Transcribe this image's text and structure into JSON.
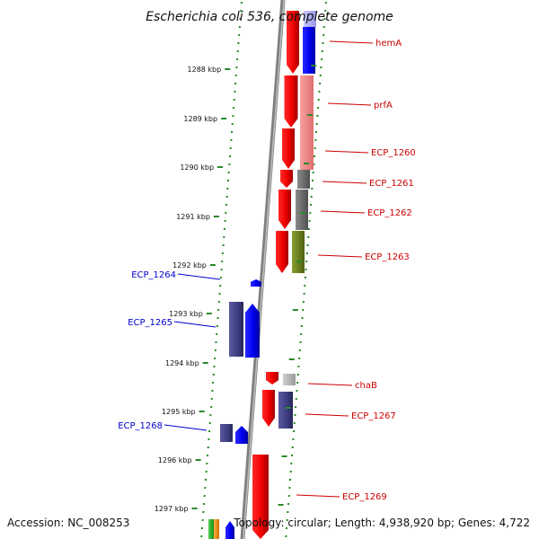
{
  "title": "Escherichia coli 536, complete genome",
  "footer": {
    "accession": "Accession: NC_008253",
    "summary": "Topology: circular; Length: 4,938,920 bp; Genes: 4,722"
  },
  "ruler": [
    {
      "label": "1288 kbp"
    },
    {
      "label": "1289 kbp"
    },
    {
      "label": "1290 kbp"
    },
    {
      "label": "1291 kbp"
    },
    {
      "label": "1292 kbp"
    },
    {
      "label": "1293 kbp"
    },
    {
      "label": "1294 kbp"
    },
    {
      "label": "1295 kbp"
    },
    {
      "label": "1296 kbp"
    },
    {
      "label": "1297 kbp"
    }
  ],
  "genes_right": [
    {
      "label": "hemA",
      "color": "#cc0000"
    },
    {
      "label": "prfA",
      "color": "#cc0000"
    },
    {
      "label": "ECP_1260",
      "color": "#cc0000"
    },
    {
      "label": "ECP_1261",
      "color": "#cc0000"
    },
    {
      "label": "ECP_1262",
      "color": "#cc0000"
    },
    {
      "label": "ECP_1263",
      "color": "#cc0000"
    },
    {
      "label": "chaB",
      "color": "#cc0000"
    },
    {
      "label": "ECP_1267",
      "color": "#cc0000"
    },
    {
      "label": "ECP_1269",
      "color": "#cc0000"
    }
  ],
  "genes_left": [
    {
      "label": "ECP_1264",
      "color": "#0000cc"
    },
    {
      "label": "ECP_1265",
      "color": "#0000cc"
    },
    {
      "label": "ECP_1268",
      "color": "#0000cc"
    }
  ]
}
